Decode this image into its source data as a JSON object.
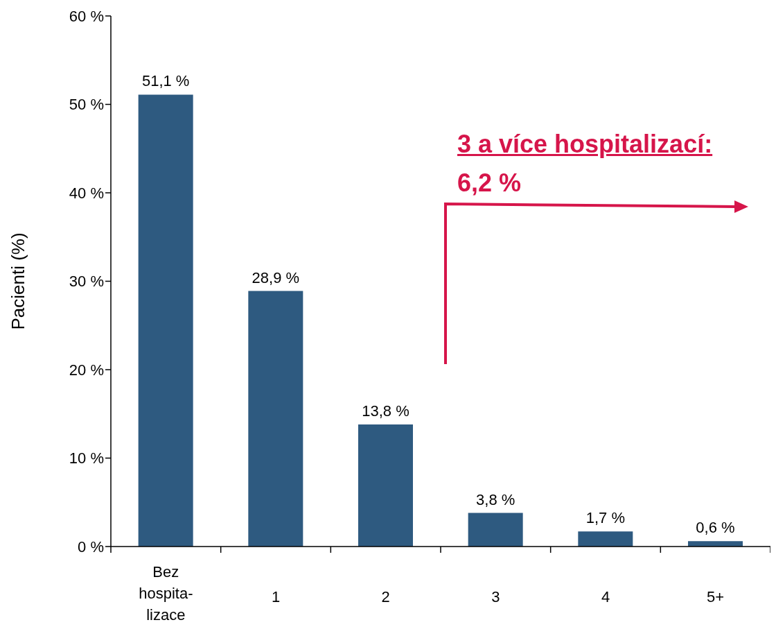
{
  "chart_data": {
    "type": "bar",
    "ylabel": "Pacienti (%)",
    "categories": [
      "Bez\nhospita-\nlizace",
      "1",
      "2",
      "3",
      "4",
      "5+"
    ],
    "values": [
      51.1,
      28.9,
      13.8,
      3.8,
      1.7,
      0.6
    ],
    "value_labels": [
      "51,1 %",
      "28,9 %",
      "13,8 %",
      "3,8 %",
      "1,7 %",
      "0,6 %"
    ],
    "color": "#2e5a80",
    "ylim": [
      0,
      60
    ],
    "yticks": [
      {
        "value": 0,
        "label": "0 %"
      },
      {
        "value": 10,
        "label": "10 %"
      },
      {
        "value": 20,
        "label": "20 %"
      },
      {
        "value": 30,
        "label": "30 %"
      },
      {
        "value": 40,
        "label": "40 %"
      },
      {
        "value": 50,
        "label": "50 %"
      },
      {
        "value": 60,
        "label": "60 %"
      }
    ],
    "annotations": [
      "3 a více hospitalizací:",
      "6,2 %"
    ]
  }
}
